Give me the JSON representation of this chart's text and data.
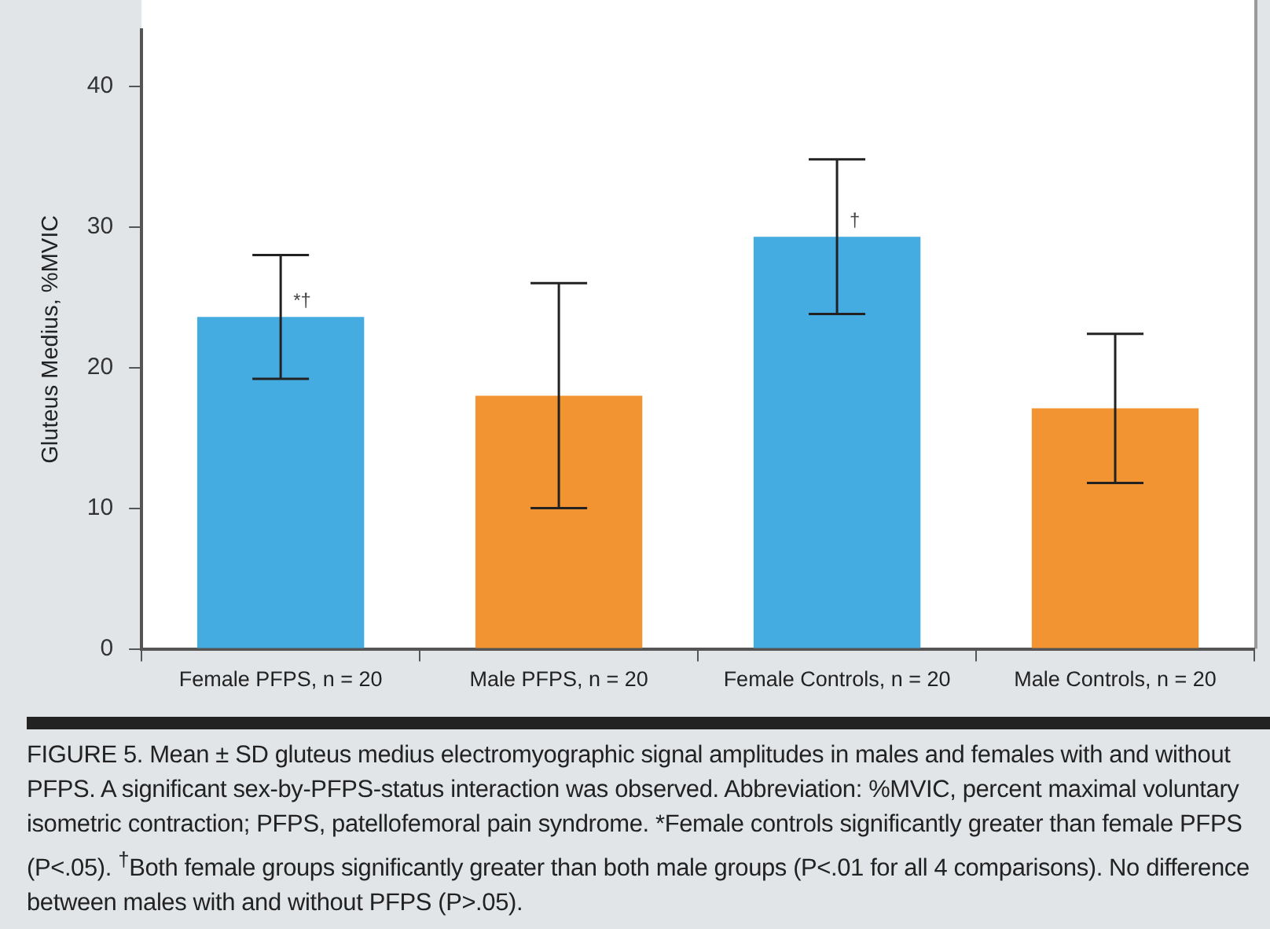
{
  "chart_data": {
    "type": "bar",
    "ylabel": "Gluteus Medius, %MVIC",
    "categories": [
      "Female PFPS, n = 20",
      "Male PFPS, n = 20",
      "Female Controls, n = 20",
      "Male Controls, n = 20"
    ],
    "values": [
      23.6,
      18.0,
      29.3,
      17.1
    ],
    "errors": [
      4.4,
      8.0,
      5.5,
      5.3
    ],
    "colors": [
      "#45ace2",
      "#f29431",
      "#45ace2",
      "#f29431"
    ],
    "ylim": [
      0,
      44
    ],
    "yticks": [
      0,
      10,
      20,
      30,
      40
    ],
    "grid": false,
    "legend": false,
    "value_labels": [
      "*†",
      null,
      "†",
      null
    ],
    "annotations": [
      "FIGURE 5. Mean ± SD gluteus medius electromyographic signal amplitudes in males and females with and without PFPS. A significant sex-by-PFPS-status interaction was observed. Abbreviation: %MVIC, percent maximal voluntary isometric contraction; PFPS, patellofemoral pain syndrome. *Female controls significantly greater than female PFPS (P<.05). $^{†}$Both female groups significantly greater than both male groups (P<.01 for all 4 comparisons). No difference between males with and without PFPS (P>.05)."
    ]
  }
}
